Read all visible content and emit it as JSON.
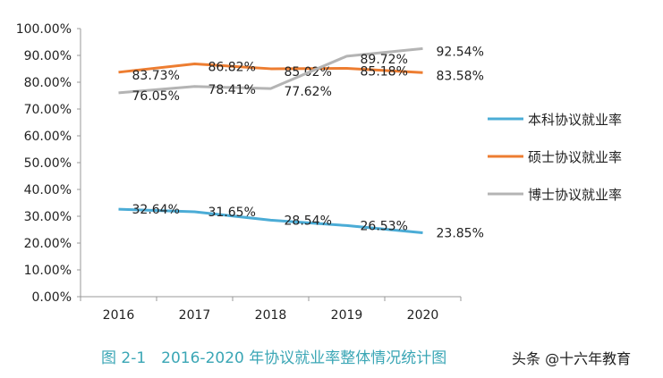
{
  "chart_data": {
    "type": "line",
    "categories": [
      "2016",
      "2017",
      "2018",
      "2019",
      "2020"
    ],
    "ylim": [
      0,
      100
    ],
    "yticks": [
      "0.00%",
      "10.00%",
      "20.00%",
      "30.00%",
      "40.00%",
      "50.00%",
      "60.00%",
      "70.00%",
      "80.00%",
      "90.00%",
      "100.00%"
    ],
    "grid": false,
    "legend": "right",
    "series": [
      {
        "name": "本科协议就业率",
        "color": "#4bacd6",
        "values": [
          32.64,
          31.65,
          28.54,
          26.53,
          23.85
        ],
        "labels": [
          "32.64%",
          "31.65%",
          "28.54%",
          "26.53%",
          "23.85%"
        ]
      },
      {
        "name": "硕士协议就业率",
        "color": "#ed7d31",
        "values": [
          83.73,
          86.82,
          85.02,
          85.18,
          83.58
        ],
        "labels": [
          "83.73%",
          "86.82%",
          "85.02%",
          "85.18%",
          "83.58%"
        ]
      },
      {
        "name": "博士协议就业率",
        "color": "#b4b4b4",
        "values": [
          76.05,
          78.41,
          77.62,
          89.72,
          92.54
        ],
        "labels": [
          "76.05%",
          "78.41%",
          "77.62%",
          "89.72%",
          "92.54%"
        ]
      }
    ]
  },
  "caption": "图 2-1　2016-2020 年协议就业率整体情况统计图",
  "watermark": "头条 @十六年教育"
}
